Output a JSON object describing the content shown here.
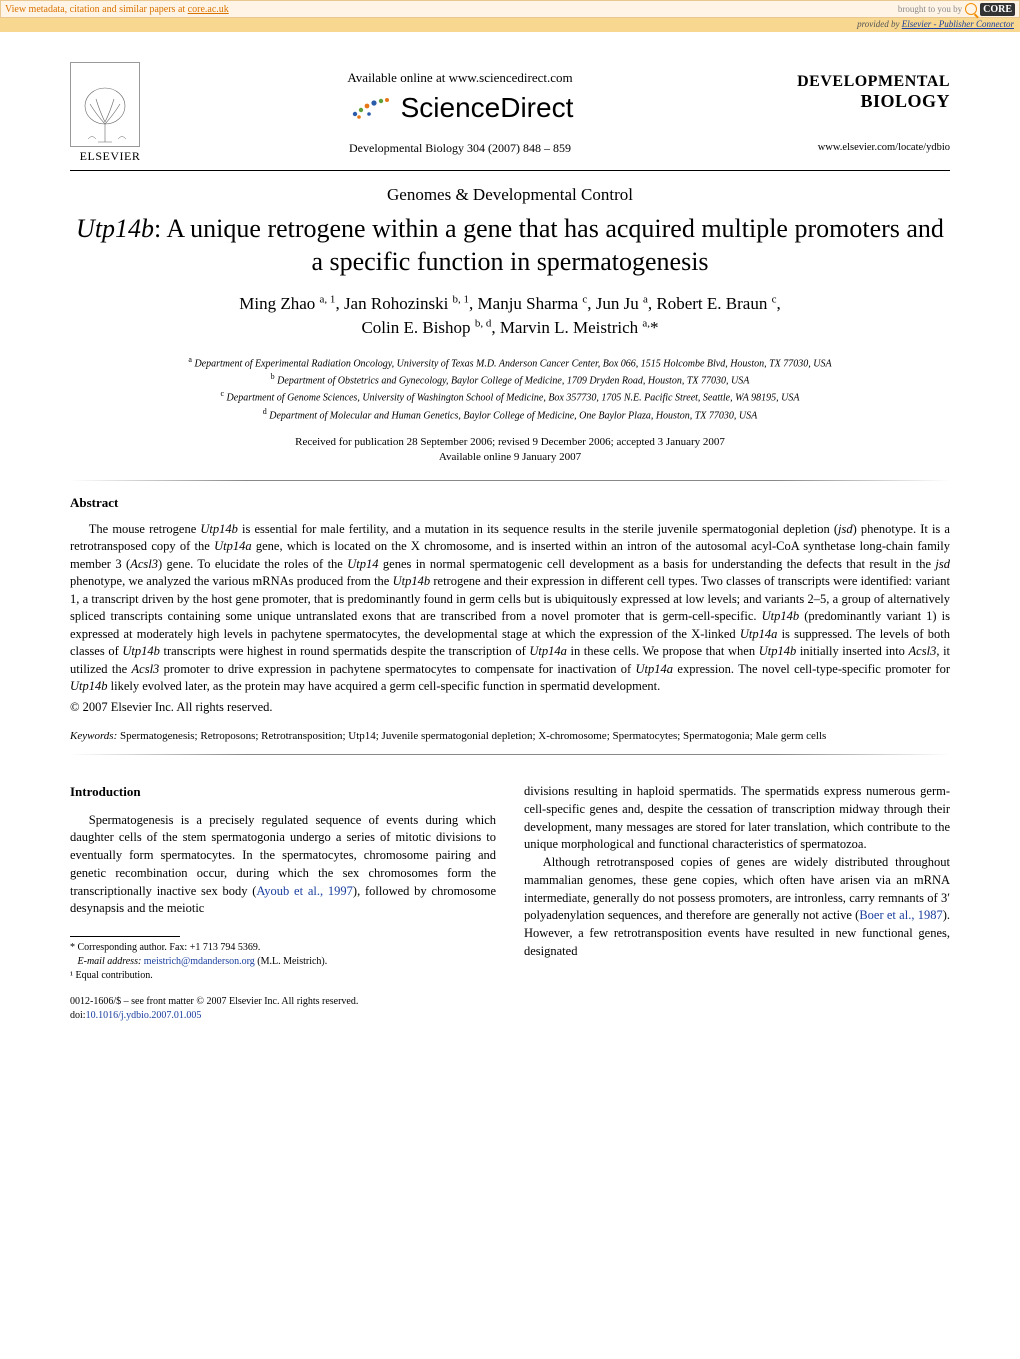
{
  "topbar": {
    "left_prefix": "View metadata, citation and similar papers at ",
    "left_link": "core.ac.uk",
    "right_prefix": "brought to you by ",
    "core": "CORE"
  },
  "subbar": {
    "prefix": "provided by ",
    "link": "Elsevier - Publisher Connector"
  },
  "header": {
    "elsevier": "ELSEVIER",
    "available_online": "Available online at www.sciencedirect.com",
    "sciencedirect": "ScienceDirect",
    "journal_ref": "Developmental Biology 304 (2007) 848 – 859",
    "journal_title_l1": "DEVELOPMENTAL",
    "journal_title_l2": "BIOLOGY",
    "journal_url": "www.elsevier.com/locate/ydbio"
  },
  "section_name": "Genomes & Developmental Control",
  "title_html": "<i>Utp14b</i>: A unique retrogene within a gene that has acquired multiple promoters and a specific function in spermatogenesis",
  "authors_html": "Ming Zhao <sup>a, 1</sup>, Jan Rohozinski <sup>b, 1</sup>, Manju Sharma <sup>c</sup>, Jun Ju <sup>a</sup>, Robert E. Braun <sup>c</sup>,<br>Colin E. Bishop <sup>b, d</sup>, Marvin L. Meistrich <sup>a,</sup>*",
  "affiliations": [
    "<sup>a</sup> Department of Experimental Radiation Oncology, University of Texas M.D. Anderson Cancer Center, Box 066, 1515 Holcombe Blvd, Houston, TX 77030, USA",
    "<sup>b</sup> Department of Obstetrics and Gynecology, Baylor College of Medicine, 1709 Dryden Road, Houston, TX 77030, USA",
    "<sup>c</sup> Department of Genome Sciences, University of Washington School of Medicine, Box 357730, 1705 N.E. Pacific Street, Seattle, WA 98195, USA",
    "<sup>d</sup> Department of Molecular and Human Genetics, Baylor College of Medicine, One Baylor Plaza, Houston, TX 77030, USA"
  ],
  "dates": {
    "l1": "Received for publication 28 September 2006; revised 9 December 2006; accepted 3 January 2007",
    "l2": "Available online 9 January 2007"
  },
  "abstract": {
    "heading": "Abstract",
    "body_html": "The mouse retrogene <i>Utp14b</i> is essential for male fertility, and a mutation in its sequence results in the sterile juvenile spermatogonial depletion (<i>jsd</i>) phenotype. It is a retrotransposed copy of the <i>Utp14a</i> gene, which is located on the X chromosome, and is inserted within an intron of the autosomal acyl-CoA synthetase long-chain family member 3 (<i>Acsl3</i>) gene. To elucidate the roles of the <i>Utp14</i> genes in normal spermatogenic cell development as a basis for understanding the defects that result in the <i>jsd</i> phenotype, we analyzed the various mRNAs produced from the <i>Utp14b</i> retrogene and their expression in different cell types. Two classes of transcripts were identified: variant 1, a transcript driven by the host gene promoter, that is predominantly found in germ cells but is ubiquitously expressed at low levels; and variants 2–5, a group of alternatively spliced transcripts containing some unique untranslated exons that are transcribed from a novel promoter that is germ-cell-specific. <i>Utp14b</i> (predominantly variant 1) is expressed at moderately high levels in pachytene spermatocytes, the developmental stage at which the expression of the X-linked <i>Utp14a</i> is suppressed. The levels of both classes of <i>Utp14b</i> transcripts were highest in round spermatids despite the transcription of <i>Utp14a</i> in these cells. We propose that when <i>Utp14b</i> initially inserted into <i>Acsl3,</i> it utilized the <i>Acsl3</i> promoter to drive expression in pachytene spermatocytes to compensate for inactivation of <i>Utp14a</i> expression. The novel cell-type-specific promoter for <i>Utp14b</i> likely evolved later, as the protein may have acquired a germ cell-specific function in spermatid development.",
    "copyright": "© 2007 Elsevier Inc. All rights reserved."
  },
  "keywords_html": "<i>Keywords:</i> Spermatogenesis; Retroposons; Retrotransposition; Utp14; Juvenile spermatogonial depletion; X-chromosome; Spermatocytes; Spermatogonia; Male germ cells",
  "introduction": {
    "heading": "Introduction",
    "left_html": "Spermatogenesis is a precisely regulated sequence of events during which daughter cells of the stem spermatogonia undergo a series of mitotic divisions to eventually form spermatocytes. In the spermatocytes, chromosome pairing and genetic recombination occur, during which the sex chromosomes form the transcriptionally inactive sex body (<span class='citation-link'>Ayoub et al., 1997</span>), followed by chromosome desynapsis and the meiotic",
    "right_p1_html": "divisions resulting in haploid spermatids. The spermatids express numerous germ-cell-specific genes and, despite the cessation of transcription midway through their development, many messages are stored for later translation, which contribute to the unique morphological and functional characteristics of spermatozoa.",
    "right_p2_html": "Although retrotransposed copies of genes are widely distributed throughout mammalian genomes, these gene copies, which often have arisen via an mRNA intermediate, generally do not possess promoters, are intronless, carry remnants of 3′ polyadenylation sequences, and therefore are generally not active (<span class='citation-link'>Boer et al., 1987</span>). However, a few retrotransposition events have resulted in new functional genes, designated"
  },
  "footnotes": {
    "corr": "* Corresponding author. Fax: +1 713 794 5369.",
    "email_label": "E-mail address:",
    "email": "meistrich@mdanderson.org",
    "email_suffix": " (M.L. Meistrich).",
    "equal": "¹ Equal contribution."
  },
  "doi": {
    "line1": "0012-1606/$ – see front matter © 2007 Elsevier Inc. All rights reserved.",
    "label": "doi:",
    "value": "10.1016/j.ydbio.2007.01.005"
  },
  "colors": {
    "topbar_bg": "#fff4e6",
    "topbar_border": "#e8c890",
    "orange": "#d97200",
    "subbar_bg": "#f8d890",
    "link_blue": "#1a3e9e",
    "core_orange": "#f28c00"
  }
}
